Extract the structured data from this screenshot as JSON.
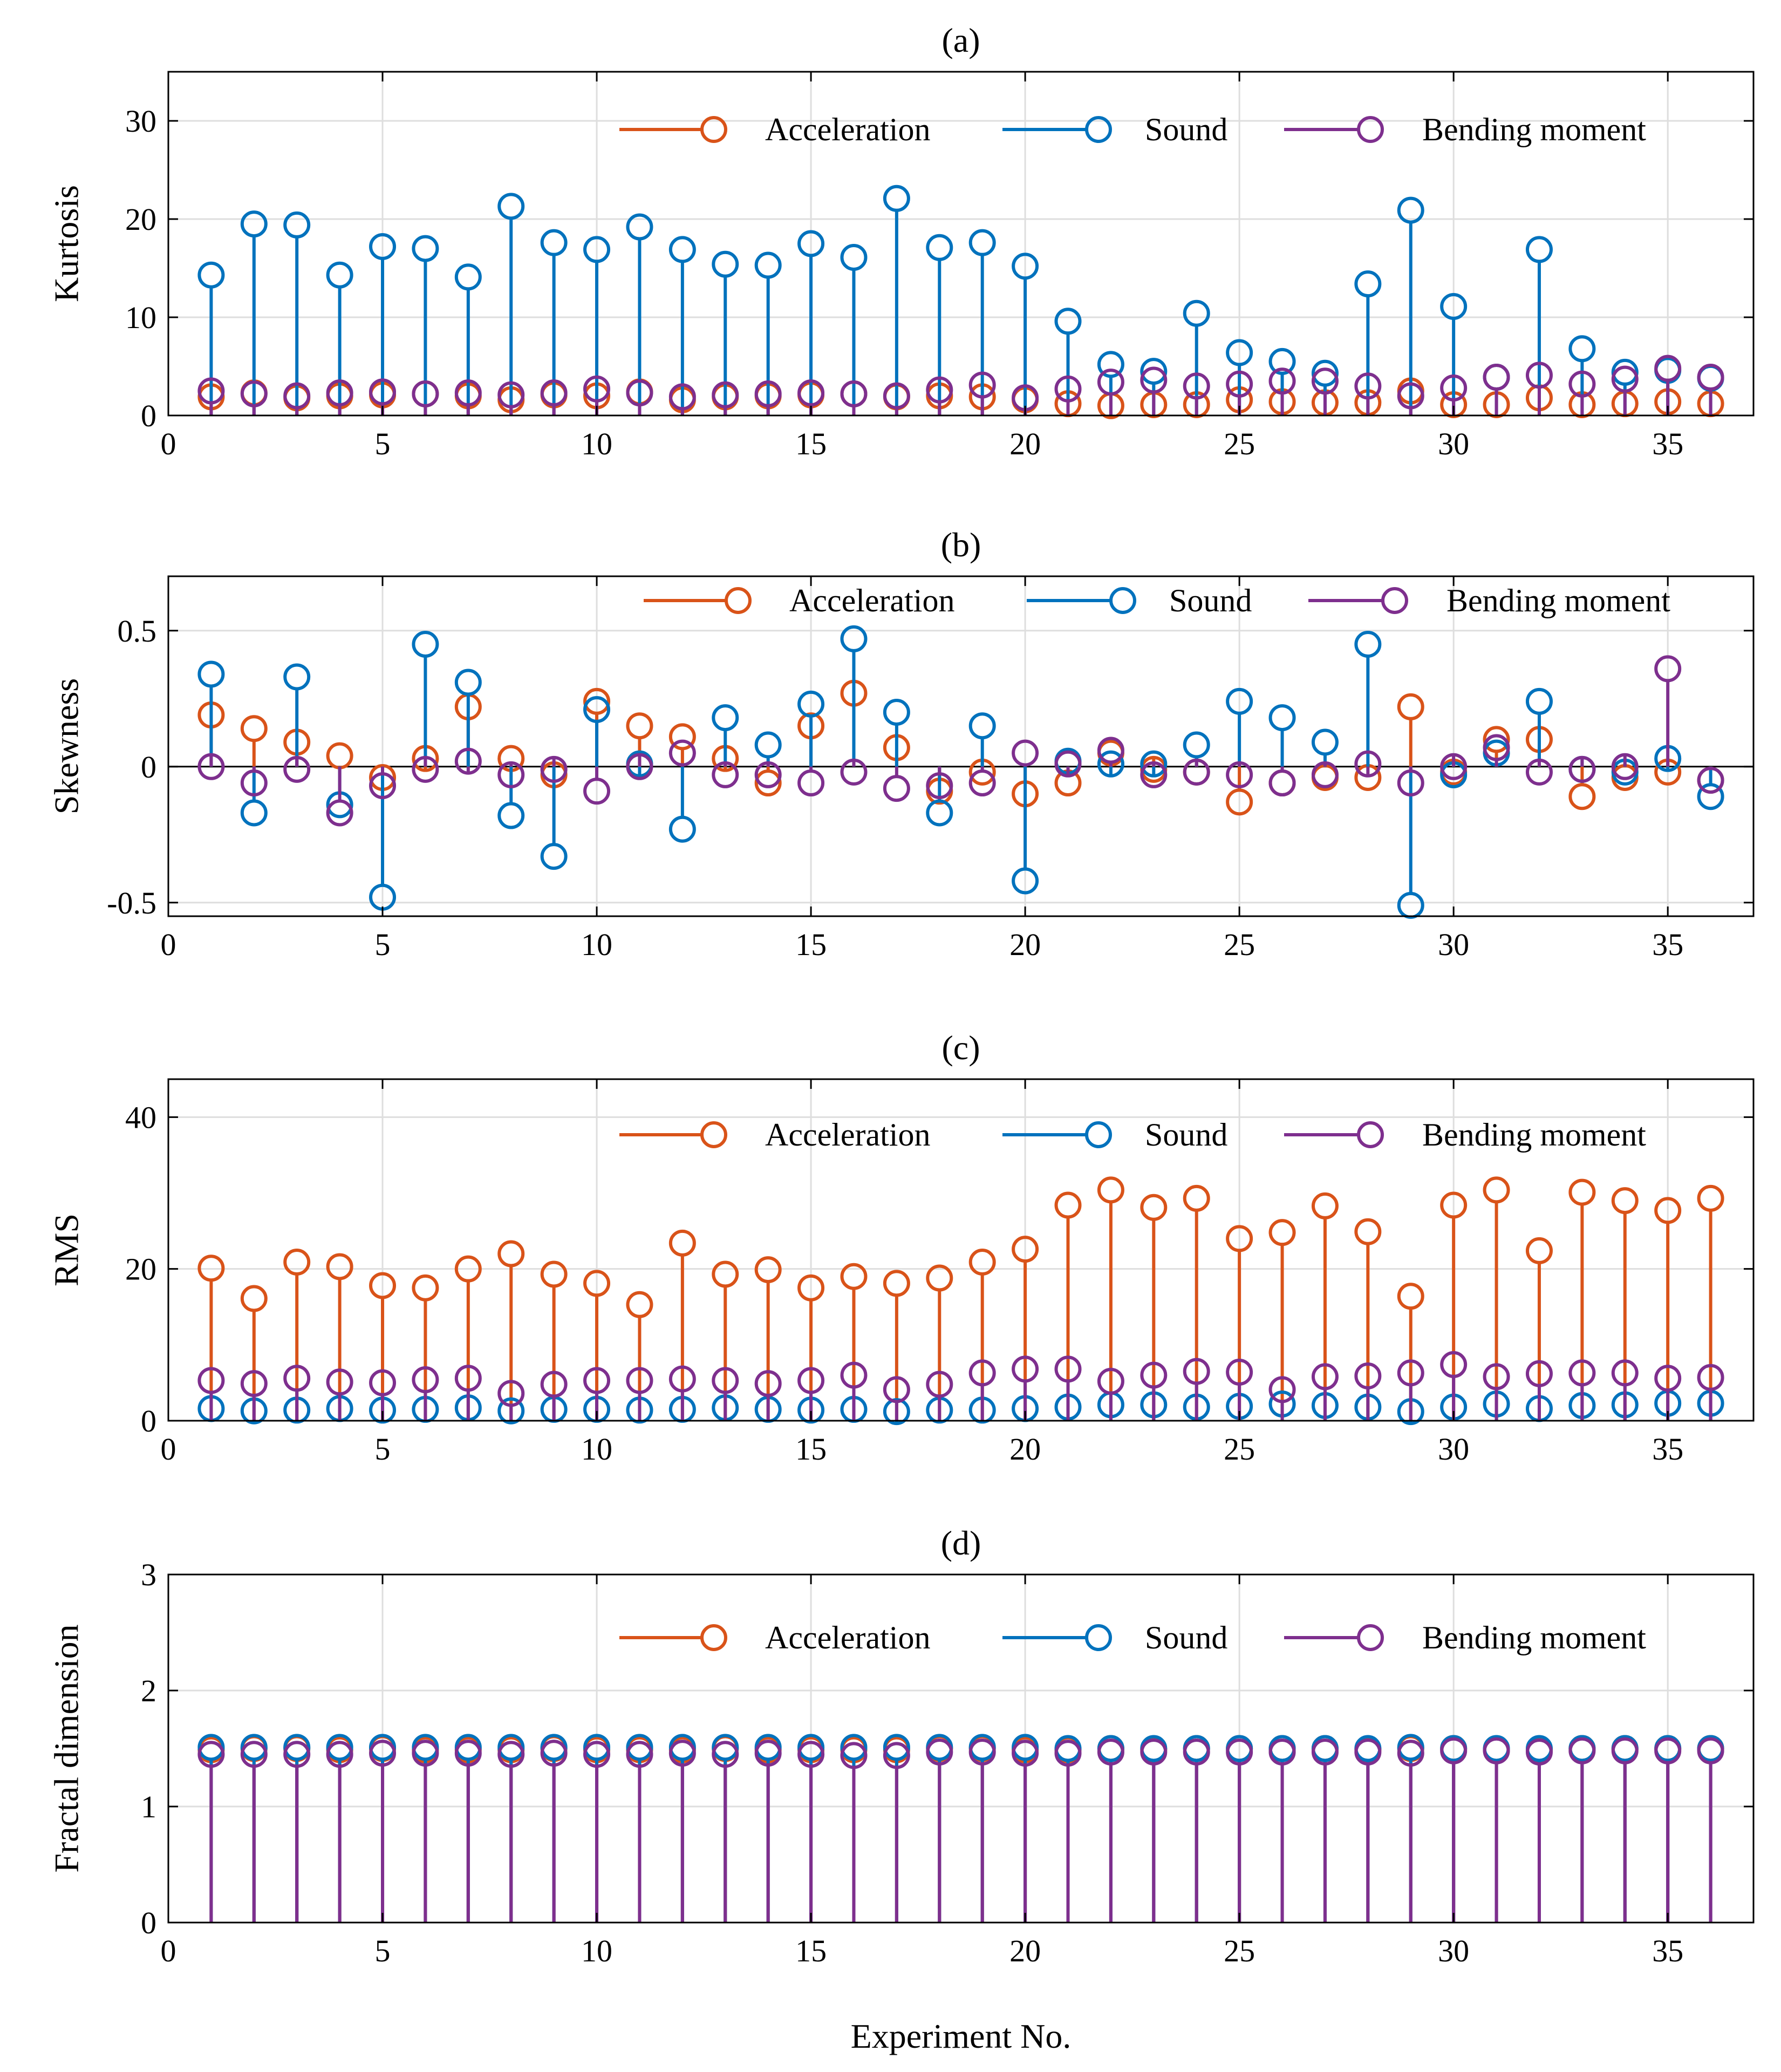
{
  "chart_data": [
    {
      "type": "stem",
      "title": "(a)",
      "xlabel": "",
      "ylabel": "Kurtosis",
      "xlim": [
        0,
        37
      ],
      "ylim": [
        0,
        35
      ],
      "xticks": [
        0,
        5,
        10,
        15,
        20,
        25,
        30,
        35
      ],
      "yticks": [
        0,
        10,
        20,
        30
      ],
      "ytick_labels": [
        "0",
        "10",
        "20",
        "30"
      ],
      "grid": true,
      "legend_position": "top-right",
      "x": [
        1,
        2,
        3,
        4,
        5,
        6,
        7,
        8,
        9,
        10,
        11,
        12,
        13,
        14,
        15,
        16,
        17,
        18,
        19,
        20,
        21,
        22,
        23,
        24,
        25,
        26,
        27,
        28,
        29,
        30,
        31,
        32,
        33,
        34,
        35,
        36
      ],
      "series": [
        {
          "name": "Acceleration",
          "color": "#D95319",
          "values": [
            1.9,
            2.3,
            1.8,
            2.0,
            2.1,
            2.2,
            2.0,
            1.6,
            2.1,
            2.0,
            2.4,
            1.6,
            1.9,
            2.0,
            2.1,
            2.2,
            1.9,
            2.0,
            1.9,
            1.6,
            1.2,
            1.0,
            1.1,
            1.1,
            1.6,
            1.4,
            1.3,
            1.3,
            2.5,
            1.1,
            1.1,
            1.8,
            1.1,
            1.2,
            1.4,
            1.2
          ]
        },
        {
          "name": "Sound",
          "color": "#0072BD",
          "values": [
            14.3,
            19.5,
            19.4,
            14.3,
            17.2,
            17.0,
            14.1,
            21.3,
            17.6,
            16.9,
            19.2,
            16.9,
            15.4,
            15.3,
            17.5,
            16.1,
            22.1,
            17.1,
            17.6,
            15.2,
            9.6,
            5.2,
            4.5,
            10.4,
            6.4,
            5.5,
            4.3,
            13.4,
            20.9,
            11.1,
            3.9,
            16.9,
            6.8,
            4.4,
            4.6,
            3.8
          ]
        },
        {
          "name": "Bending moment",
          "color": "#7E2F8E",
          "values": [
            2.5,
            2.2,
            2.0,
            2.3,
            2.4,
            2.2,
            2.3,
            2.1,
            2.3,
            2.7,
            2.3,
            1.9,
            2.1,
            2.2,
            2.3,
            2.2,
            2.0,
            2.6,
            3.1,
            1.8,
            2.7,
            3.4,
            3.6,
            3.0,
            3.2,
            3.5,
            3.5,
            3.0,
            2.0,
            2.8,
            3.9,
            4.1,
            3.2,
            3.7,
            4.8,
            3.9
          ]
        }
      ]
    },
    {
      "type": "stem",
      "title": "(b)",
      "xlabel": "",
      "ylabel": "Skewness",
      "xlim": [
        0,
        37
      ],
      "ylim": [
        -0.55,
        0.7
      ],
      "xticks": [
        0,
        5,
        10,
        15,
        20,
        25,
        30,
        35
      ],
      "yticks": [
        -0.5,
        0,
        0.5
      ],
      "ytick_labels": [
        "-0.5",
        "0",
        "0.5"
      ],
      "grid": true,
      "zero_line": true,
      "legend_position": "top-right",
      "x": [
        1,
        2,
        3,
        4,
        5,
        6,
        7,
        8,
        9,
        10,
        11,
        12,
        13,
        14,
        15,
        16,
        17,
        18,
        19,
        20,
        21,
        22,
        23,
        24,
        25,
        26,
        27,
        28,
        29,
        30,
        31,
        32,
        33,
        34,
        35,
        36
      ],
      "series": [
        {
          "name": "Acceleration",
          "color": "#D95319",
          "values": [
            0.19,
            0.14,
            0.09,
            0.04,
            -0.04,
            0.03,
            0.22,
            0.03,
            -0.03,
            0.24,
            0.15,
            0.11,
            0.03,
            -0.06,
            0.15,
            0.27,
            0.07,
            -0.09,
            -0.02,
            -0.1,
            -0.06,
            0.05,
            -0.01,
            -0.02,
            -0.13,
            -0.06,
            -0.04,
            -0.04,
            0.22,
            -0.02,
            0.1,
            0.1,
            -0.11,
            -0.04,
            -0.02,
            -0.05
          ]
        },
        {
          "name": "Sound",
          "color": "#0072BD",
          "values": [
            0.34,
            -0.17,
            0.33,
            -0.14,
            -0.48,
            0.45,
            0.31,
            -0.18,
            -0.33,
            0.21,
            0.01,
            -0.23,
            0.18,
            0.08,
            0.23,
            0.47,
            0.2,
            -0.17,
            0.15,
            -0.42,
            0.02,
            0.01,
            0.01,
            0.08,
            0.24,
            0.18,
            0.09,
            0.45,
            -0.51,
            -0.03,
            0.05,
            0.24,
            -0.01,
            -0.02,
            0.03,
            -0.11
          ]
        },
        {
          "name": "Bending moment",
          "color": "#7E2F8E",
          "values": [
            0.0,
            -0.06,
            -0.01,
            -0.17,
            -0.07,
            -0.01,
            0.02,
            -0.03,
            -0.01,
            -0.09,
            0.0,
            0.05,
            -0.03,
            -0.03,
            -0.06,
            -0.02,
            -0.08,
            -0.07,
            -0.06,
            0.05,
            0.01,
            0.06,
            -0.03,
            -0.02,
            -0.03,
            -0.06,
            -0.03,
            0.01,
            -0.06,
            0.0,
            0.07,
            -0.02,
            -0.01,
            0.0,
            0.36,
            -0.05
          ]
        }
      ]
    },
    {
      "type": "stem",
      "title": "(c)",
      "xlabel": "",
      "ylabel": "RMS",
      "xlim": [
        0,
        37
      ],
      "ylim": [
        0,
        45
      ],
      "xticks": [
        0,
        5,
        10,
        15,
        20,
        25,
        30,
        35
      ],
      "yticks": [
        0,
        20,
        40
      ],
      "ytick_labels": [
        "0",
        "20",
        "40"
      ],
      "grid": true,
      "legend_position": "top-right",
      "x": [
        1,
        2,
        3,
        4,
        5,
        6,
        7,
        8,
        9,
        10,
        11,
        12,
        13,
        14,
        15,
        16,
        17,
        18,
        19,
        20,
        21,
        22,
        23,
        24,
        25,
        26,
        27,
        28,
        29,
        30,
        31,
        32,
        33,
        34,
        35,
        36
      ],
      "series": [
        {
          "name": "Acceleration",
          "color": "#D95319",
          "values": [
            20.1,
            16.1,
            20.9,
            20.3,
            17.8,
            17.5,
            20.0,
            22.0,
            19.3,
            18.1,
            15.3,
            23.4,
            19.3,
            19.9,
            17.5,
            19.0,
            18.1,
            18.8,
            20.9,
            22.6,
            28.4,
            30.4,
            28.1,
            29.3,
            24.0,
            24.8,
            28.3,
            24.9,
            16.4,
            28.4,
            30.4,
            22.4,
            30.1,
            29.0,
            27.7,
            29.3
          ]
        },
        {
          "name": "Sound",
          "color": "#0072BD",
          "values": [
            1.6,
            1.3,
            1.4,
            1.6,
            1.4,
            1.5,
            1.7,
            1.3,
            1.5,
            1.5,
            1.4,
            1.5,
            1.7,
            1.5,
            1.4,
            1.5,
            1.2,
            1.4,
            1.4,
            1.6,
            1.8,
            2.1,
            2.1,
            1.8,
            1.9,
            2.2,
            2.0,
            1.8,
            1.2,
            1.8,
            2.2,
            1.6,
            2.0,
            2.1,
            2.3,
            2.3
          ]
        },
        {
          "name": "Bending moment",
          "color": "#7E2F8E",
          "values": [
            5.3,
            4.9,
            5.6,
            5.1,
            5.0,
            5.4,
            5.6,
            3.6,
            4.8,
            5.3,
            5.3,
            5.5,
            5.3,
            4.9,
            5.3,
            6.0,
            4.1,
            4.8,
            6.3,
            6.8,
            6.8,
            5.2,
            6.0,
            6.5,
            6.4,
            4.1,
            5.8,
            5.9,
            6.3,
            7.4,
            5.8,
            6.2,
            6.3,
            6.3,
            5.6,
            5.7
          ]
        }
      ]
    },
    {
      "type": "stem",
      "title": "(d)",
      "xlabel": "Experiment No.",
      "ylabel": "Fractal dimension",
      "xlim": [
        0,
        37
      ],
      "ylim": [
        0,
        3
      ],
      "xticks": [
        0,
        5,
        10,
        15,
        20,
        25,
        30,
        35
      ],
      "yticks": [
        0,
        1,
        2,
        3
      ],
      "ytick_labels": [
        "0",
        "1",
        "2",
        "3"
      ],
      "grid": true,
      "legend_position": "top-right",
      "x": [
        1,
        2,
        3,
        4,
        5,
        6,
        7,
        8,
        9,
        10,
        11,
        12,
        13,
        14,
        15,
        16,
        17,
        18,
        19,
        20,
        21,
        22,
        23,
        24,
        25,
        26,
        27,
        28,
        29,
        30,
        31,
        32,
        33,
        34,
        35,
        36
      ],
      "series": [
        {
          "name": "Acceleration",
          "color": "#D95319",
          "values": [
            1.49,
            1.5,
            1.5,
            1.49,
            1.5,
            1.49,
            1.49,
            1.49,
            1.5,
            1.49,
            1.49,
            1.49,
            1.5,
            1.49,
            1.49,
            1.49,
            1.49,
            1.5,
            1.5,
            1.49,
            1.49,
            1.5,
            1.49,
            1.5,
            1.5,
            1.5,
            1.5,
            1.49,
            1.5,
            1.5,
            1.49,
            1.49,
            1.5,
            1.5,
            1.5,
            1.5
          ]
        },
        {
          "name": "Sound",
          "color": "#0072BD",
          "values": [
            1.51,
            1.51,
            1.51,
            1.51,
            1.51,
            1.51,
            1.51,
            1.51,
            1.51,
            1.51,
            1.51,
            1.51,
            1.51,
            1.51,
            1.51,
            1.51,
            1.51,
            1.51,
            1.51,
            1.51,
            1.5,
            1.5,
            1.5,
            1.5,
            1.5,
            1.5,
            1.5,
            1.5,
            1.51,
            1.5,
            1.5,
            1.5,
            1.5,
            1.5,
            1.5,
            1.5
          ]
        },
        {
          "name": "Bending moment",
          "color": "#7E2F8E",
          "values": [
            1.45,
            1.45,
            1.45,
            1.45,
            1.46,
            1.46,
            1.46,
            1.45,
            1.46,
            1.45,
            1.45,
            1.46,
            1.45,
            1.46,
            1.45,
            1.44,
            1.44,
            1.47,
            1.47,
            1.46,
            1.46,
            1.47,
            1.47,
            1.47,
            1.47,
            1.47,
            1.47,
            1.47,
            1.46,
            1.48,
            1.48,
            1.47,
            1.48,
            1.48,
            1.48,
            1.48
          ]
        }
      ]
    }
  ]
}
